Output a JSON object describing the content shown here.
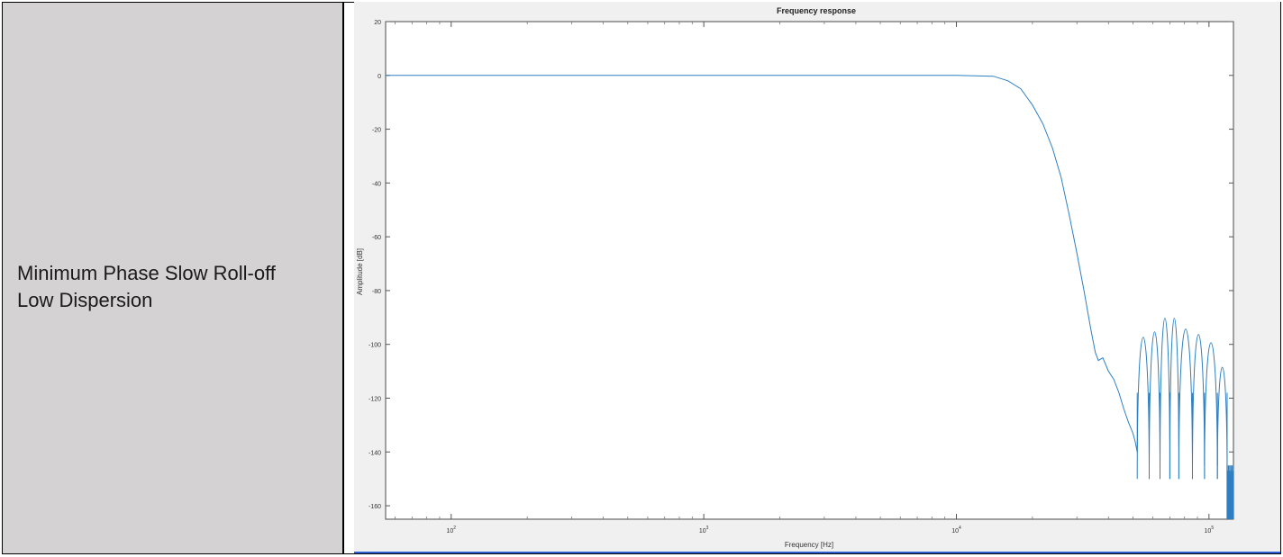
{
  "row_label": {
    "line1": "Minimum Phase Slow Roll-off",
    "line2": "Low Dispersion"
  },
  "colors": {
    "label_bg": "#d4d2d2",
    "chart_bg": "#f0f0f0",
    "plot_bg": "#ffffff",
    "line": "#2f7fc1"
  },
  "chart_data": {
    "type": "line",
    "title": "Frequency response",
    "xlabel": "Frequency [Hz]",
    "ylabel": "Amplitude [dB]",
    "xscale": "log",
    "xlim": [
      55,
      125000
    ],
    "ylim": [
      -165,
      20
    ],
    "xticks": [
      {
        "value": 100,
        "label": "10",
        "exp": "2"
      },
      {
        "value": 1000,
        "label": "10",
        "exp": "3"
      },
      {
        "value": 10000,
        "label": "10",
        "exp": "4"
      },
      {
        "value": 100000,
        "label": "10",
        "exp": "5"
      }
    ],
    "yticks": [
      20,
      0,
      -20,
      -40,
      -60,
      -80,
      -100,
      -120,
      -140,
      -160
    ],
    "grid": false,
    "series": [
      {
        "x": [
          55,
          1000,
          10000,
          14000,
          16000,
          18000,
          20000,
          22000,
          24000,
          26000,
          28000,
          30000,
          32000,
          34000,
          35500,
          36500,
          38000,
          40000,
          42000,
          44000,
          46000,
          48000,
          50000,
          51000,
          52000
        ],
        "y": [
          0,
          0,
          0,
          -0.3,
          -2,
          -5,
          -11,
          -18,
          -27,
          -38,
          -52,
          -66,
          -80,
          -94,
          -103,
          -106,
          -105,
          -110,
          -113,
          -118,
          -124,
          -129,
          -133,
          -136,
          -140
        ]
      }
    ],
    "lobes": [
      {
        "f1": 52000,
        "f2": 58000,
        "peak": -98
      },
      {
        "f1": 58000,
        "f2": 64000,
        "peak": -96
      },
      {
        "f1": 64000,
        "f2": 70000,
        "peak": -91
      },
      {
        "f1": 70000,
        "f2": 76000,
        "peak": -91
      },
      {
        "f1": 76000,
        "f2": 86000,
        "peak": -95
      },
      {
        "f1": 86000,
        "f2": 96000,
        "peak": -97
      },
      {
        "f1": 96000,
        "f2": 108000,
        "peak": -100
      },
      {
        "f1": 108000,
        "f2": 118000,
        "peak": -109
      }
    ],
    "nulls": [
      {
        "f": 52000,
        "depth": -140
      },
      {
        "f": 58000,
        "depth": -134
      },
      {
        "f": 64000,
        "depth": -130
      },
      {
        "f": 70000,
        "depth": -135
      },
      {
        "f": 76000,
        "depth": -138
      },
      {
        "f": 86000,
        "depth": -140
      },
      {
        "f": 96000,
        "depth": -145
      },
      {
        "f": 108000,
        "depth": -145
      },
      {
        "f": 118000,
        "depth": -145
      }
    ],
    "tail": {
      "f1": 118000,
      "f2": 125000,
      "ymin": -165,
      "ymax": -145
    }
  }
}
